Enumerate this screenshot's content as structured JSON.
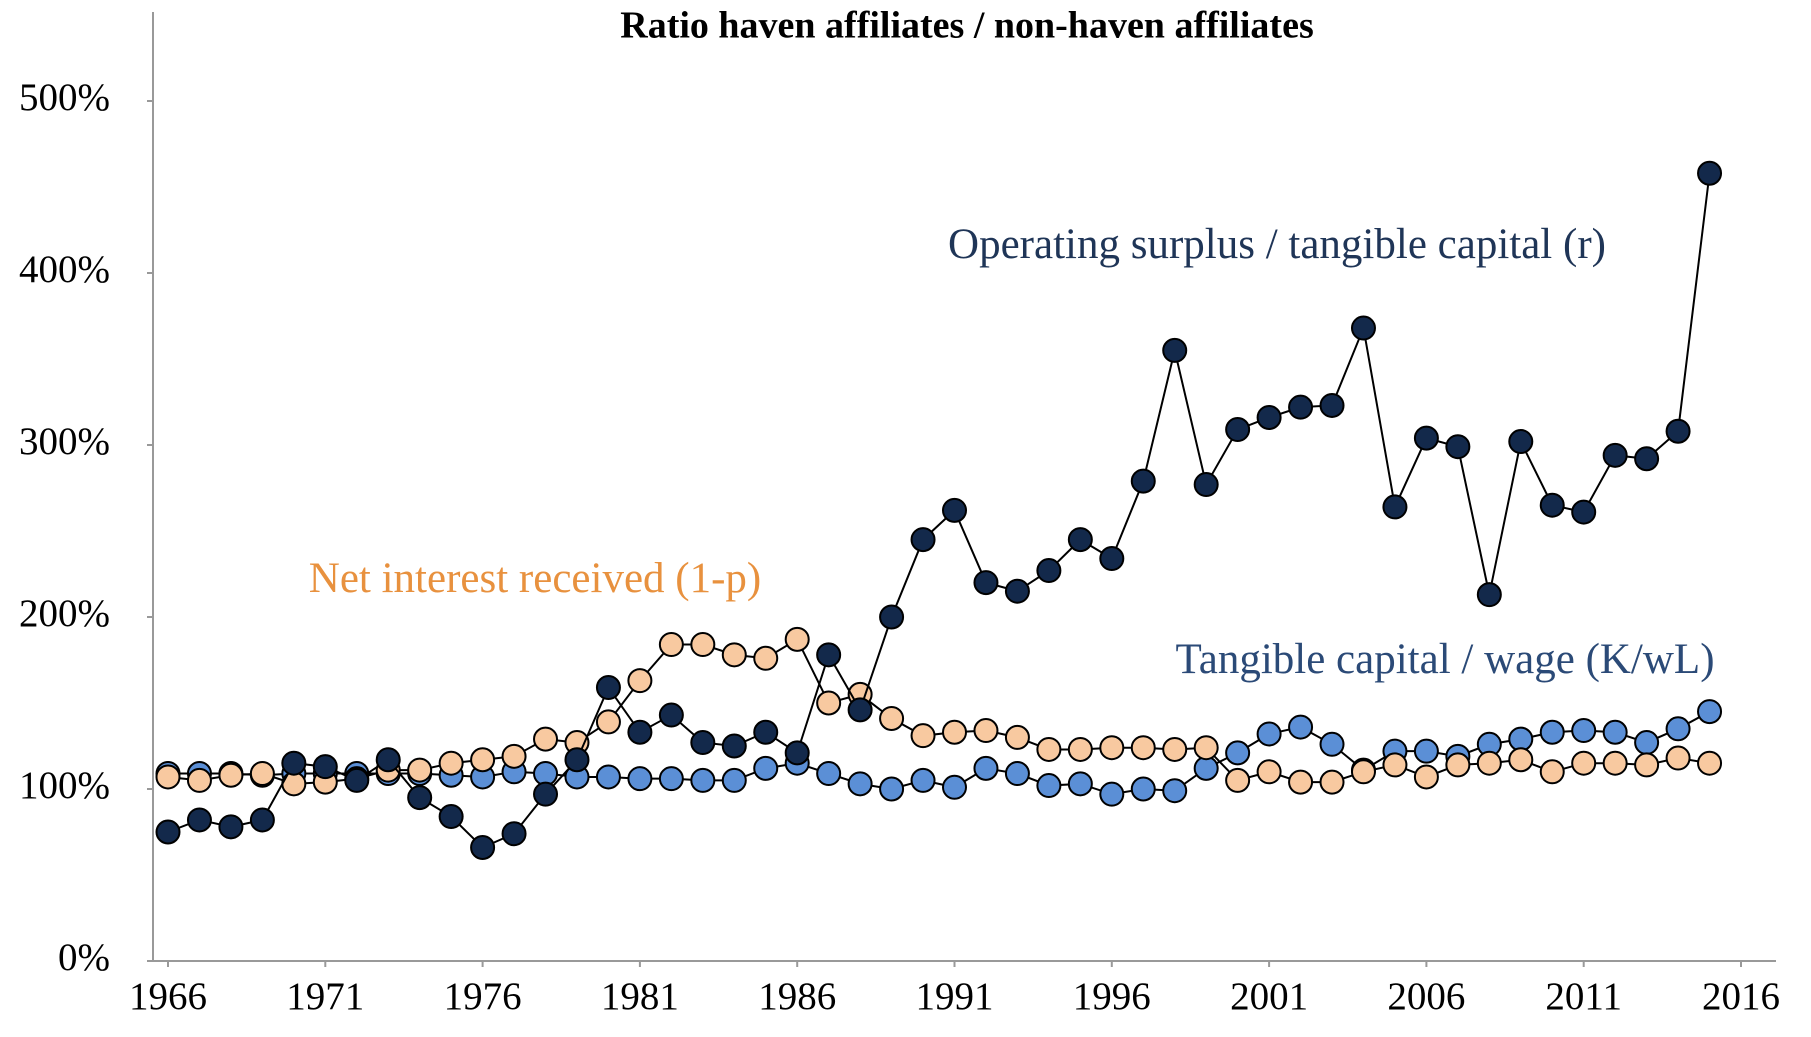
{
  "chart_data": {
    "type": "line",
    "title": "Ratio haven affiliates / non-haven affiliates",
    "x": [
      1966,
      1967,
      1968,
      1969,
      1970,
      1971,
      1972,
      1973,
      1974,
      1975,
      1976,
      1977,
      1978,
      1979,
      1980,
      1981,
      1982,
      1983,
      1984,
      1985,
      1986,
      1987,
      1988,
      1989,
      1990,
      1991,
      1992,
      1993,
      1994,
      1995,
      1996,
      1997,
      1998,
      1999,
      2000,
      2001,
      2002,
      2003,
      2004,
      2005,
      2006,
      2007,
      2008,
      2009,
      2010,
      2011,
      2012,
      2013,
      2014,
      2015
    ],
    "series": [
      {
        "name": "Tangible capital / wage (K/wL)",
        "color": "#5b8fd6",
        "label_color": "#2b4a77",
        "values": [
          109,
          109,
          109,
          108,
          109,
          109,
          109,
          109,
          109,
          108,
          107,
          110,
          109,
          107,
          107,
          106,
          106,
          105,
          105,
          112,
          115,
          109,
          103,
          100,
          105,
          101,
          112,
          109,
          102,
          103,
          97,
          100,
          99,
          112,
          121,
          132,
          136,
          126,
          111,
          122,
          122,
          119,
          126,
          129,
          133,
          134,
          133,
          127,
          135,
          145
        ]
      },
      {
        "name": "Net interest received (1-p)",
        "color": "#f8c9a0",
        "label_color": "#e8913e",
        "values": [
          107,
          105,
          108,
          109,
          103,
          104,
          106,
          111,
          111,
          115,
          117,
          119,
          129,
          127,
          139,
          163,
          184,
          184,
          178,
          176,
          187,
          150,
          155,
          141,
          131,
          133,
          134,
          130,
          123,
          123,
          124,
          124,
          123,
          124,
          105,
          110,
          104,
          104,
          110,
          114,
          107,
          114,
          115,
          117,
          110,
          115,
          115,
          114,
          118,
          115
        ]
      },
      {
        "name": "Operating surplus / tangible capital (r)",
        "color": "#13294b",
        "label_color": "#1f3557",
        "values": [
          75,
          82,
          78,
          82,
          115,
          113,
          105,
          117,
          95,
          84,
          66,
          74,
          97,
          117,
          159,
          133,
          143,
          127,
          125,
          133,
          121,
          178,
          146,
          200,
          245,
          262,
          220,
          215,
          227,
          245,
          234,
          279,
          355,
          277,
          309,
          316,
          322,
          323,
          368,
          264,
          304,
          299,
          213,
          302,
          265,
          261,
          294,
          292,
          308,
          458
        ]
      }
    ],
    "xlim": [
      1966,
      2016
    ],
    "xticks": [
      1966,
      1971,
      1976,
      1981,
      1986,
      1991,
      1996,
      2001,
      2006,
      2011,
      2016
    ],
    "ylim": [
      0,
      500
    ],
    "yticks": [
      {
        "value": 0,
        "label": "0%"
      },
      {
        "value": 100,
        "label": "100%"
      },
      {
        "value": 200,
        "label": "200%"
      },
      {
        "value": 300,
        "label": "300%"
      },
      {
        "value": 400,
        "label": "400%"
      },
      {
        "value": 500,
        "label": "500%"
      }
    ]
  }
}
